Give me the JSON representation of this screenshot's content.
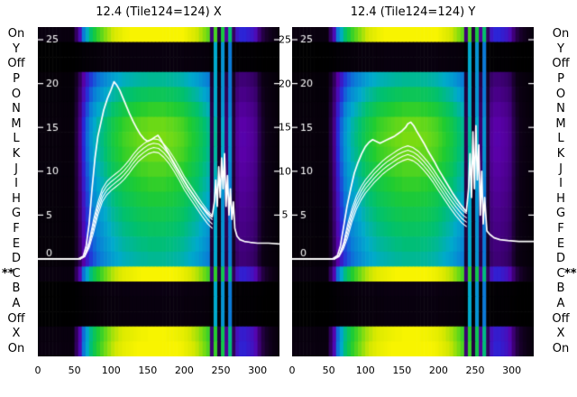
{
  "chart_data": {
    "type": "heatmap",
    "x_range": [
      0,
      330
    ],
    "x_ticks": [
      0,
      50,
      100,
      150,
      200,
      250,
      300
    ],
    "y_ticks": [
      25,
      20,
      15,
      10,
      5
    ],
    "y_zero_label": "0",
    "row_labels": [
      "On",
      "Y",
      "Off",
      "P",
      "O",
      "N",
      "M",
      "L",
      "K",
      "J",
      "I",
      "H",
      "G",
      "F",
      "E",
      "D",
      "C",
      "B",
      "A",
      "Off",
      "X",
      "On"
    ],
    "star_marker": "**",
    "starred_row_label": "C",
    "colormap": [
      [
        0.0,
        "#000000"
      ],
      [
        0.06,
        "#0d0016"
      ],
      [
        0.15,
        "#3a006f"
      ],
      [
        0.22,
        "#5a00a8"
      ],
      [
        0.3,
        "#2a25d8"
      ],
      [
        0.4,
        "#0a7ad8"
      ],
      [
        0.5,
        "#00aacc"
      ],
      [
        0.6,
        "#00c070"
      ],
      [
        0.7,
        "#20cc30"
      ],
      [
        0.8,
        "#7edc10"
      ],
      [
        0.9,
        "#d8e800"
      ],
      [
        1.0,
        "#f8f400"
      ]
    ],
    "heatmap": {
      "col_profile": [
        0.03,
        0.03,
        0.03,
        0.03,
        0.03,
        0.03,
        0.03,
        0.03,
        0.03,
        0.03,
        0.1,
        0.18,
        0.3,
        0.38,
        0.45,
        0.5,
        0.54,
        0.57,
        0.6,
        0.63,
        0.66,
        0.68,
        0.7,
        0.72,
        0.73,
        0.74,
        0.75,
        0.76,
        0.77,
        0.77,
        0.78,
        0.78,
        0.78,
        0.78,
        0.78,
        0.77,
        0.77,
        0.76,
        0.75,
        0.74,
        0.72,
        0.7,
        0.68,
        0.66,
        0.63,
        0.6,
        0.57,
        0.12,
        0.55,
        0.08,
        0.5,
        0.15,
        0.45,
        0.1,
        0.2,
        0.22,
        0.22,
        0.21,
        0.2,
        0.18,
        0.12,
        0.08,
        0.06,
        0.05,
        0.04,
        0.03
      ],
      "stripe_floor": [
        0,
        0,
        0,
        0,
        0,
        0,
        0,
        0,
        0,
        0,
        0,
        0,
        0,
        0,
        0,
        0,
        0,
        0,
        0,
        0,
        0,
        0,
        0,
        0,
        0,
        0,
        0,
        0,
        0,
        0,
        0,
        0,
        0,
        0,
        0,
        0,
        0,
        0,
        0,
        0,
        0,
        0,
        0,
        0,
        0,
        0,
        0,
        0,
        0.5,
        0,
        0.45,
        0,
        0.4,
        0,
        0,
        0,
        0,
        0,
        0,
        0,
        0,
        0,
        0,
        0,
        0,
        0
      ],
      "row_weights": [
        1.35,
        0.05,
        0.05,
        0.72,
        0.82,
        0.92,
        1.0,
        1.02,
        1.0,
        0.96,
        0.92,
        0.88,
        0.84,
        0.8,
        0.76,
        0.72,
        1.3,
        0.06,
        0.05,
        0.05,
        1.28,
        1.32
      ]
    },
    "panels": [
      {
        "title": "12.4 (Tile124=124) X",
        "main_line": {
          "x": [
            0,
            55,
            62,
            66,
            70,
            74,
            78,
            82,
            86,
            90,
            95,
            100,
            104,
            108,
            112,
            116,
            120,
            125,
            130,
            135,
            140,
            145,
            150,
            155,
            160,
            164,
            168,
            172,
            176,
            180,
            185,
            190,
            195,
            200,
            205,
            210,
            215,
            220,
            225,
            230,
            235,
            238,
            241,
            243,
            245,
            247,
            249,
            251,
            253,
            255,
            257,
            259,
            261,
            263,
            265,
            267,
            269,
            272,
            276,
            282,
            290,
            300,
            315,
            330
          ],
          "y": [
            0,
            0,
            0.3,
            1.5,
            4,
            8,
            11.5,
            14,
            15.5,
            17,
            18.3,
            19.3,
            20.2,
            19.8,
            19.2,
            18.4,
            17.6,
            16.6,
            15.7,
            14.9,
            14.2,
            13.7,
            13.4,
            13.6,
            13.9,
            14.1,
            13.6,
            13,
            12.4,
            11.8,
            11,
            10.3,
            9.6,
            8.9,
            8.2,
            7.6,
            7,
            6.4,
            5.9,
            5.4,
            5,
            4.8,
            6.5,
            9,
            6,
            10.5,
            7,
            11.5,
            8,
            12,
            6,
            9.5,
            5,
            8,
            4.5,
            6.5,
            3.5,
            2.6,
            2.2,
            2,
            1.9,
            1.8,
            1.8,
            1.7
          ]
        },
        "bundle_line": {
          "x": [
            0,
            58,
            64,
            70,
            76,
            82,
            88,
            94,
            100,
            106,
            112,
            118,
            124,
            130,
            137,
            144,
            151,
            158,
            165,
            172,
            179,
            186,
            193,
            200,
            208,
            216,
            224,
            232,
            238
          ],
          "y": [
            0,
            0,
            0.4,
            2,
            4.5,
            6.5,
            8,
            8.8,
            9.3,
            9.7,
            10.1,
            10.6,
            11.2,
            11.9,
            12.6,
            13.1,
            13.5,
            13.7,
            13.6,
            13.1,
            12.4,
            11.5,
            10.5,
            9.4,
            8.4,
            7.4,
            6.4,
            5.5,
            5
          ],
          "offsets": [
            0,
            -0.5,
            -1.0,
            -1.5
          ]
        }
      },
      {
        "title": "12.4 (Tile124=124) Y",
        "main_line": {
          "x": [
            0,
            55,
            62,
            66,
            70,
            75,
            80,
            85,
            90,
            95,
            100,
            105,
            110,
            115,
            120,
            125,
            130,
            135,
            140,
            145,
            150,
            155,
            158,
            162,
            166,
            170,
            175,
            180,
            185,
            190,
            195,
            200,
            205,
            210,
            215,
            220,
            225,
            230,
            235,
            238,
            241,
            243,
            245,
            247,
            249,
            251,
            253,
            255,
            257,
            259,
            261,
            263,
            266,
            270,
            276,
            284,
            295,
            310,
            330
          ],
          "y": [
            0,
            0,
            0.4,
            1.5,
            3.5,
            6,
            8,
            9.8,
            11,
            12,
            12.8,
            13.3,
            13.6,
            13.4,
            13.2,
            13.4,
            13.6,
            13.8,
            14,
            14.3,
            14.6,
            15,
            15.4,
            15.6,
            15.2,
            14.6,
            13.9,
            13.2,
            12.4,
            11.7,
            11,
            10.2,
            9.5,
            8.8,
            8.1,
            7.4,
            6.8,
            6.2,
            5.7,
            5.4,
            8,
            12,
            7,
            14.5,
            8,
            15.2,
            9,
            13,
            5,
            10,
            4,
            7,
            3.2,
            2.8,
            2.4,
            2.2,
            2.1,
            2,
            2
          ]
        },
        "bundle_line": {
          "x": [
            0,
            58,
            64,
            70,
            76,
            82,
            88,
            94,
            100,
            106,
            112,
            118,
            124,
            130,
            137,
            144,
            151,
            158,
            165,
            172,
            179,
            186,
            193,
            200,
            208,
            216,
            224,
            232,
            238
          ],
          "y": [
            0,
            0,
            0.4,
            1.8,
            4,
            5.8,
            7.2,
            8.2,
            9,
            9.6,
            10.2,
            10.7,
            11.2,
            11.6,
            12,
            12.4,
            12.7,
            12.9,
            12.7,
            12.3,
            11.7,
            11,
            10.2,
            9.3,
            8.3,
            7.3,
            6.4,
            5.6,
            5.2
          ],
          "offsets": [
            0,
            -0.5,
            -1.0,
            -1.5
          ]
        }
      }
    ]
  }
}
